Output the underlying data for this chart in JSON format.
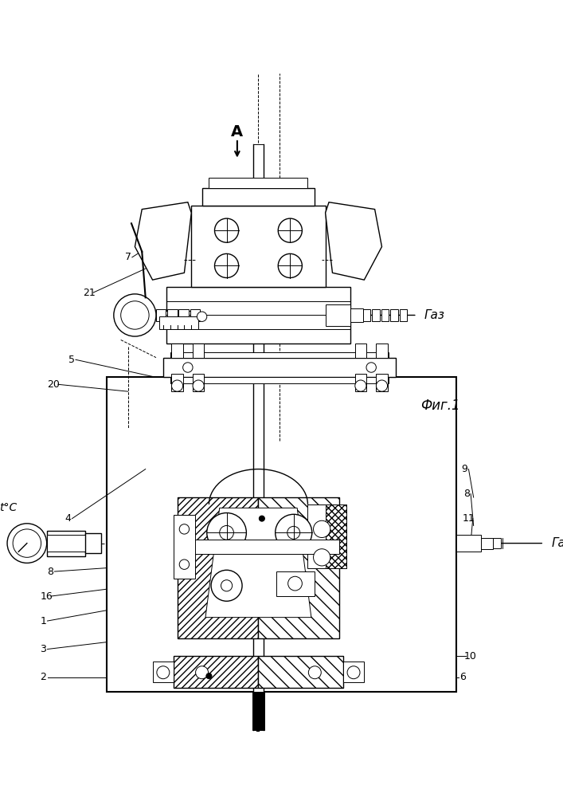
{
  "bg_color": "#ffffff",
  "line_color": "#000000",
  "fig_width": 7.07,
  "fig_height": 10.0,
  "dpi": 100,
  "title": "Фиг.1",
  "annotation_A": "A",
  "annotation_Gaz1": "Газ",
  "annotation_Gaz2": "Газ",
  "annotation_tC": "t°C"
}
